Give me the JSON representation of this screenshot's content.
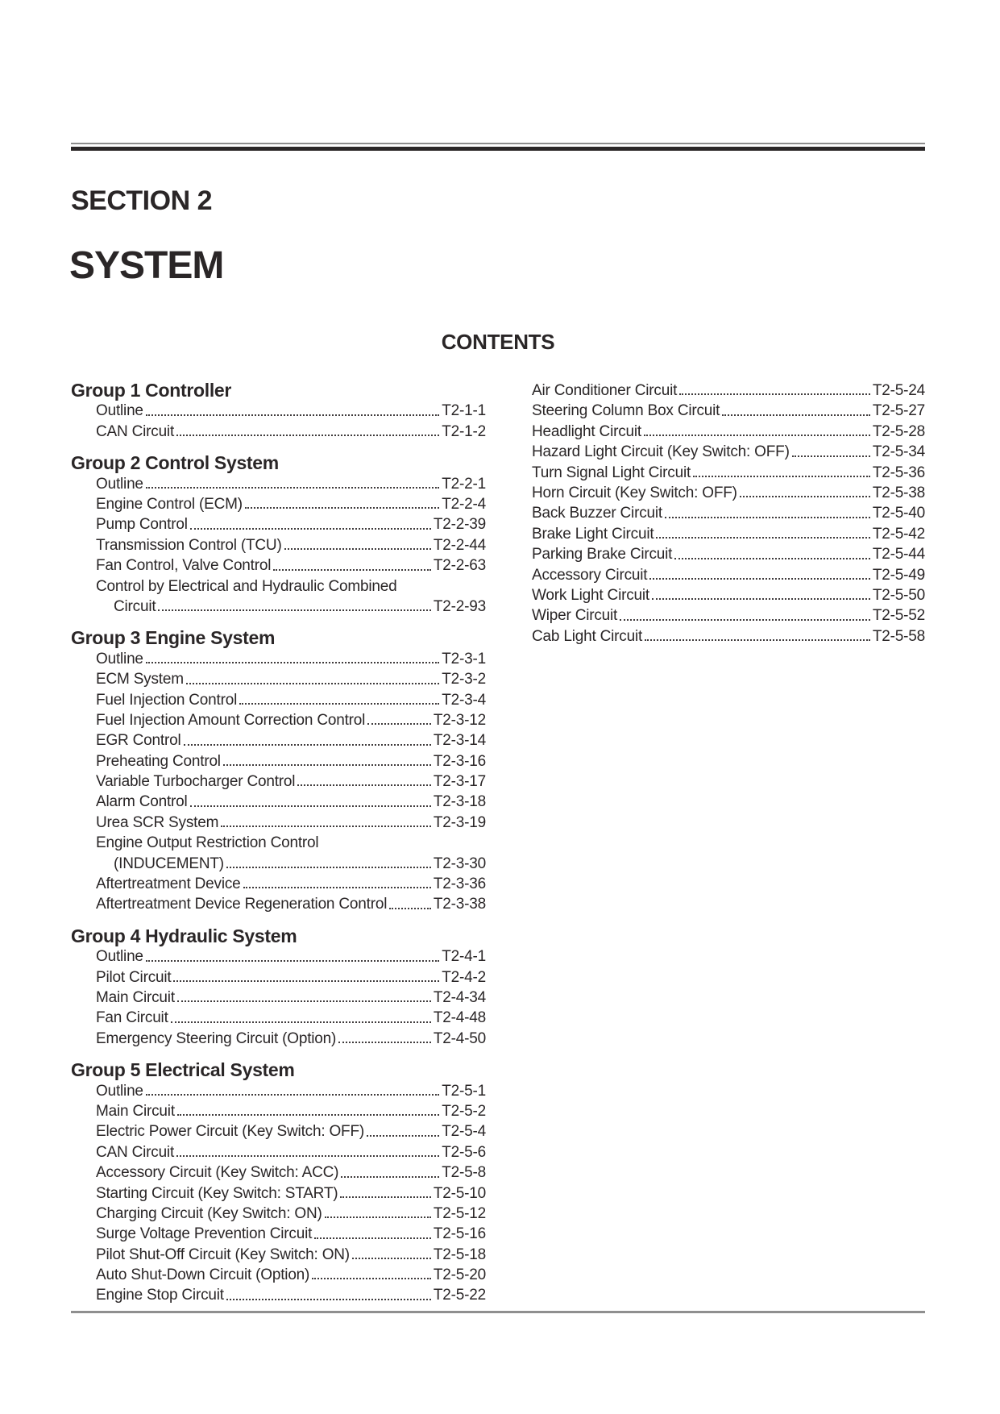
{
  "header": {
    "section_label": "SECTION 2",
    "title": "SYSTEM",
    "contents_heading": "CONTENTS"
  },
  "colors": {
    "text": "#2a2627",
    "rule_dark": "#2b2728",
    "rule_gray": "#8d8d8d",
    "leader_dot": "#3f3b3c"
  },
  "toc": {
    "left_groups": [
      {
        "heading": "Group 1 Controller",
        "rows": [
          {
            "label": "Outline",
            "page": "T2-1-1"
          },
          {
            "label": "CAN Circuit",
            "page": "T2-1-2"
          }
        ]
      },
      {
        "heading": "Group 2 Control System",
        "rows": [
          {
            "label": "Outline",
            "page": "T2-2-1"
          },
          {
            "label": "Engine Control (ECM)",
            "page": "T2-2-4"
          },
          {
            "label": "Pump Control",
            "page": "T2-2-39"
          },
          {
            "label": "Transmission Control (TCU)",
            "page": "T2-2-44"
          },
          {
            "label": "Fan Control, Valve Control",
            "page": "T2-2-63"
          },
          {
            "label": "Control by Electrical and Hydraulic Combined",
            "page": null
          },
          {
            "label": "Circuit",
            "page": "T2-2-93",
            "indent": true
          }
        ]
      },
      {
        "heading": "Group 3 Engine System",
        "rows": [
          {
            "label": "Outline",
            "page": "T2-3-1"
          },
          {
            "label": "ECM System",
            "page": "T2-3-2"
          },
          {
            "label": "Fuel Injection Control",
            "page": "T2-3-4"
          },
          {
            "label": "Fuel Injection Amount Correction Control",
            "page": "T2-3-12"
          },
          {
            "label": "EGR Control",
            "page": "T2-3-14"
          },
          {
            "label": "Preheating Control",
            "page": "T2-3-16"
          },
          {
            "label": "Variable Turbocharger Control",
            "page": "T2-3-17"
          },
          {
            "label": "Alarm Control",
            "page": "T2-3-18"
          },
          {
            "label": "Urea SCR System",
            "page": "T2-3-19"
          },
          {
            "label": "Engine Output Restriction Control",
            "page": null
          },
          {
            "label": "(INDUCEMENT)",
            "page": "T2-3-30",
            "indent": true
          },
          {
            "label": "Aftertreatment Device",
            "page": "T2-3-36"
          },
          {
            "label": "Aftertreatment Device Regeneration Control",
            "page": "T2-3-38"
          }
        ]
      },
      {
        "heading": "Group 4 Hydraulic System",
        "rows": [
          {
            "label": "Outline",
            "page": "T2-4-1"
          },
          {
            "label": "Pilot Circuit",
            "page": "T2-4-2"
          },
          {
            "label": "Main Circuit",
            "page": "T2-4-34"
          },
          {
            "label": "Fan Circuit",
            "page": "T2-4-48"
          },
          {
            "label": "Emergency Steering Circuit (Option)",
            "page": "T2-4-50"
          }
        ]
      },
      {
        "heading": "Group 5 Electrical System",
        "rows": [
          {
            "label": "Outline",
            "page": "T2-5-1"
          },
          {
            "label": "Main Circuit",
            "page": "T2-5-2"
          },
          {
            "label": "Electric Power Circuit (Key Switch: OFF)",
            "page": "T2-5-4"
          },
          {
            "label": "CAN Circuit",
            "page": "T2-5-6"
          },
          {
            "label": "Accessory Circuit (Key Switch: ACC)",
            "page": "T2-5-8"
          },
          {
            "label": "Starting Circuit (Key Switch: START)",
            "page": "T2-5-10"
          },
          {
            "label": "Charging Circuit (Key Switch: ON)",
            "page": "T2-5-12"
          },
          {
            "label": "Surge Voltage Prevention Circuit",
            "page": "T2-5-16"
          },
          {
            "label": "Pilot Shut-Off Circuit (Key Switch: ON)",
            "page": "T2-5-18"
          },
          {
            "label": "Auto Shut-Down Circuit (Option)",
            "page": "T2-5-20"
          },
          {
            "label": "Engine Stop Circuit",
            "page": "T2-5-22"
          }
        ]
      }
    ],
    "right_rows": [
      {
        "label": "Air Conditioner Circuit",
        "page": "T2-5-24"
      },
      {
        "label": "Steering Column Box Circuit",
        "page": "T2-5-27"
      },
      {
        "label": "Headlight Circuit",
        "page": "T2-5-28"
      },
      {
        "label": "Hazard Light Circuit (Key Switch: OFF)",
        "page": "T2-5-34"
      },
      {
        "label": "Turn Signal Light Circuit",
        "page": "T2-5-36"
      },
      {
        "label": "Horn Circuit (Key Switch: OFF)",
        "page": "T2-5-38"
      },
      {
        "label": "Back Buzzer Circuit",
        "page": "T2-5-40"
      },
      {
        "label": "Brake Light Circuit",
        "page": "T2-5-42"
      },
      {
        "label": "Parking Brake Circuit",
        "page": "T2-5-44"
      },
      {
        "label": "Accessory Circuit",
        "page": "T2-5-49"
      },
      {
        "label": "Work Light Circuit",
        "page": "T2-5-50"
      },
      {
        "label": "Wiper Circuit",
        "page": "T2-5-52"
      },
      {
        "label": "Cab Light Circuit",
        "page": "T2-5-58"
      }
    ]
  }
}
